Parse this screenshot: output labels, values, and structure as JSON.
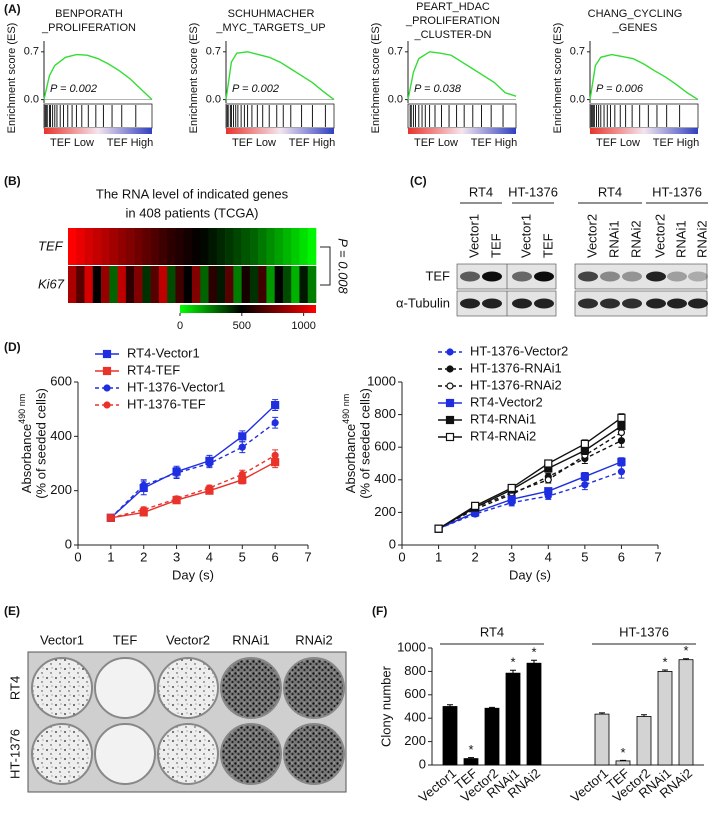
{
  "panel_labels": [
    "(A)",
    "(B)",
    "(C)",
    "(D)",
    "(E)",
    "(F)"
  ],
  "chart_data": [
    {
      "type": "gsea",
      "title": [
        "BENPORATH",
        "_PROLIFERATION"
      ],
      "ylabel": "Enrichment score (ES)",
      "annotation": "P = 0.002",
      "x_labels": [
        "TEF Low",
        "TEF High"
      ],
      "color": "#33dd33",
      "xlim": [
        0,
        1
      ],
      "ylim": [
        -0.05,
        0.8
      ],
      "yticks": [
        0.7,
        {
          "value": 0,
          "label": "0.0"
        }
      ],
      "x": [
        0,
        0.05,
        0.1,
        0.2,
        0.3,
        0.4,
        0.5,
        0.6,
        0.7,
        0.8,
        0.9,
        1
      ],
      "values": [
        0,
        0.35,
        0.5,
        0.62,
        0.66,
        0.65,
        0.6,
        0.52,
        0.42,
        0.3,
        0.15,
        0
      ],
      "hits": [
        0.01,
        0.02,
        0.03,
        0.05,
        0.06,
        0.08,
        0.1,
        0.12,
        0.15,
        0.18,
        0.22,
        0.26,
        0.3,
        0.35,
        0.41,
        0.48,
        0.55,
        0.63,
        0.72,
        0.85
      ]
    },
    {
      "type": "gsea",
      "title": [
        "SCHUHMACHER",
        "_MYC_TARGETS_UP"
      ],
      "ylabel": "Enrichment score (ES)",
      "annotation": "P = 0.002",
      "x_labels": [
        "TEF Low",
        "TEF High"
      ],
      "color": "#33dd33",
      "xlim": [
        0,
        1
      ],
      "ylim": [
        -0.05,
        0.8
      ],
      "yticks": [
        0.7,
        {
          "value": 0,
          "label": "0.0"
        }
      ],
      "x": [
        0,
        0.05,
        0.1,
        0.2,
        0.3,
        0.4,
        0.5,
        0.6,
        0.7,
        0.8,
        0.9,
        1
      ],
      "values": [
        0,
        0.55,
        0.68,
        0.7,
        0.66,
        0.62,
        0.55,
        0.45,
        0.35,
        0.25,
        0.12,
        0
      ],
      "hits": [
        0.01,
        0.02,
        0.04,
        0.05,
        0.07,
        0.09,
        0.11,
        0.14,
        0.17,
        0.2,
        0.24,
        0.29,
        0.34,
        0.4,
        0.47,
        0.53,
        0.6,
        0.7,
        0.8,
        0.92
      ]
    },
    {
      "type": "gsea",
      "title": [
        "PEART_HDAC",
        "_PROLIFERATION",
        "_CLUSTER-DN"
      ],
      "ylabel": "Enrichment score (ES)",
      "annotation": "P = 0.038",
      "x_labels": [
        "TEF Low",
        "TEF High"
      ],
      "color": "#33dd33",
      "xlim": [
        0,
        1
      ],
      "ylim": [
        -0.05,
        0.8
      ],
      "yticks": [
        0.7,
        {
          "value": 0,
          "label": "0.0"
        }
      ],
      "x": [
        0,
        0.05,
        0.1,
        0.2,
        0.3,
        0.4,
        0.5,
        0.6,
        0.7,
        0.8,
        0.9,
        1
      ],
      "values": [
        0,
        0.4,
        0.6,
        0.7,
        0.68,
        0.65,
        0.55,
        0.45,
        0.35,
        0.25,
        0.1,
        0.05
      ],
      "hits": [
        0.02,
        0.03,
        0.05,
        0.07,
        0.1,
        0.13,
        0.16,
        0.2,
        0.25,
        0.31,
        0.38,
        0.45,
        0.52,
        0.6,
        0.68,
        0.77,
        0.88
      ]
    },
    {
      "type": "gsea",
      "title": [
        "CHANG_CYCLING",
        "_GENES"
      ],
      "ylabel": "Enrichment score (ES)",
      "annotation": "P = 0.006",
      "x_labels": [
        "TEF Low",
        "TEF High"
      ],
      "color": "#33dd33",
      "xlim": [
        0,
        1
      ],
      "ylim": [
        -0.05,
        0.8
      ],
      "yticks": [
        0.7,
        {
          "value": 0,
          "label": "0.0"
        }
      ],
      "x": [
        0,
        0.05,
        0.1,
        0.2,
        0.3,
        0.4,
        0.5,
        0.6,
        0.7,
        0.8,
        0.9,
        1
      ],
      "values": [
        0,
        0.5,
        0.62,
        0.66,
        0.63,
        0.6,
        0.52,
        0.42,
        0.33,
        0.22,
        0.1,
        0
      ],
      "hits": [
        0.01,
        0.02,
        0.03,
        0.04,
        0.06,
        0.08,
        0.1,
        0.13,
        0.16,
        0.19,
        0.23,
        0.28,
        0.33,
        0.39,
        0.46,
        0.54,
        0.62,
        0.71,
        0.83
      ]
    },
    {
      "type": "line",
      "xlabel": "Day (s)",
      "ylabel": "Absorbance",
      "ylabel_sup": "490 nm",
      "ylabel2": "(% of seeded cells)",
      "x": [
        1,
        2,
        3,
        4,
        5,
        6
      ],
      "xlim": [
        0,
        7
      ],
      "xticks": [
        0,
        1,
        2,
        3,
        4,
        5,
        6,
        7
      ],
      "ylim": [
        0,
        600
      ],
      "yticks": [
        0,
        200,
        400,
        600
      ],
      "series": [
        {
          "name": "RT4-Vector1",
          "color": "#1f2fe0",
          "marker": "square",
          "fill": "filled",
          "dash": false,
          "values": [
            100,
            210,
            270,
            310,
            400,
            515
          ],
          "errors": [
            5,
            25,
            20,
            20,
            20,
            20
          ]
        },
        {
          "name": "RT4-TEF",
          "color": "#e8332b",
          "marker": "square",
          "fill": "filled",
          "dash": false,
          "values": [
            100,
            120,
            165,
            200,
            240,
            305
          ],
          "errors": [
            5,
            10,
            10,
            10,
            15,
            20
          ]
        },
        {
          "name": "HT-1376-Vector1",
          "color": "#1f2fe0",
          "marker": "circle",
          "fill": "filled",
          "dash": true,
          "values": [
            100,
            220,
            265,
            300,
            360,
            450
          ],
          "errors": [
            5,
            20,
            20,
            15,
            20,
            20
          ]
        },
        {
          "name": "HT-1376-TEF",
          "color": "#e8332b",
          "marker": "circle",
          "fill": "filled",
          "dash": true,
          "values": [
            100,
            130,
            170,
            210,
            260,
            330
          ],
          "errors": [
            5,
            10,
            10,
            10,
            15,
            20
          ]
        }
      ]
    },
    {
      "type": "line",
      "xlabel": "Day (s)",
      "ylabel": "Absorbance",
      "ylabel_sup": "490 nm",
      "ylabel2": "(% of seeded cells)",
      "x": [
        1,
        2,
        3,
        4,
        5,
        6
      ],
      "xlim": [
        0,
        7
      ],
      "xticks": [
        0,
        1,
        2,
        3,
        4,
        5,
        6,
        7
      ],
      "ylim": [
        0,
        1000
      ],
      "yticks": [
        0,
        200,
        400,
        600,
        800,
        1000
      ],
      "series": [
        {
          "name": "HT-1376-Vector2",
          "color": "#1f2fe0",
          "marker": "circle",
          "fill": "filled",
          "dash": true,
          "values": [
            100,
            190,
            260,
            300,
            370,
            450
          ],
          "errors": [
            5,
            15,
            20,
            20,
            30,
            40
          ]
        },
        {
          "name": "HT-1376-RNAi1",
          "color": "#111111",
          "marker": "circle",
          "fill": "filled",
          "dash": true,
          "values": [
            100,
            220,
            310,
            420,
            530,
            640
          ],
          "errors": [
            5,
            15,
            20,
            20,
            30,
            40
          ]
        },
        {
          "name": "HT-1376-RNAi2",
          "color": "#111111",
          "marker": "circle",
          "fill": "open",
          "dash": true,
          "values": [
            100,
            230,
            320,
            400,
            550,
            690
          ],
          "errors": [
            5,
            15,
            20,
            20,
            30,
            40
          ]
        },
        {
          "name": "RT4-Vector2",
          "color": "#1f2fe0",
          "marker": "square",
          "fill": "filled",
          "dash": false,
          "values": [
            100,
            200,
            280,
            330,
            420,
            510
          ],
          "errors": [
            5,
            15,
            20,
            20,
            25,
            25
          ]
        },
        {
          "name": "RT4-RNAi1",
          "color": "#111111",
          "marker": "square",
          "fill": "filled",
          "dash": false,
          "values": [
            100,
            230,
            340,
            470,
            580,
            730
          ],
          "errors": [
            5,
            15,
            20,
            20,
            25,
            25
          ]
        },
        {
          "name": "RT4-RNAi2",
          "color": "#111111",
          "marker": "square",
          "fill": "open",
          "dash": false,
          "values": [
            100,
            240,
            350,
            500,
            620,
            780
          ],
          "errors": [
            5,
            15,
            20,
            20,
            25,
            25
          ]
        }
      ]
    },
    {
      "type": "bar",
      "ylabel": "Clony number",
      "categories": [
        "Vector1",
        "TEF",
        "Vector2",
        "RNAi1",
        "RNAi2"
      ],
      "ylim": [
        0,
        1000
      ],
      "yticks": [
        0,
        200,
        400,
        600,
        800,
        1000
      ],
      "series": [
        {
          "name": "RT4",
          "color": "#000000",
          "values": [
            500,
            55,
            485,
            785,
            870
          ],
          "errors": [
            15,
            8,
            8,
            25,
            25
          ],
          "significance": [
            null,
            "*",
            null,
            "*",
            "*"
          ]
        },
        {
          "name": "HT-1376",
          "color": "#d3d3d3",
          "values": [
            435,
            35,
            415,
            800,
            900
          ],
          "errors": [
            10,
            5,
            15,
            12,
            8
          ],
          "significance": [
            null,
            "*",
            null,
            "*",
            "*"
          ]
        }
      ]
    }
  ],
  "heatmap": {
    "title": [
      "The RNA level of indicated genes",
      "in 408 patients (TCGA)"
    ],
    "annotation": "P = 0.008",
    "rows": [
      {
        "name": "TEF",
        "values": [
          1100,
          1050,
          1000,
          960,
          920,
          880,
          840,
          800,
          760,
          720,
          680,
          640,
          600,
          570,
          540,
          510,
          480,
          450,
          420,
          390,
          360,
          330,
          300,
          260,
          220,
          180,
          140,
          100,
          60,
          20
        ]
      },
      {
        "name": "Ki67",
        "values": [
          900,
          700,
          1000,
          500,
          850,
          300,
          950,
          600,
          800,
          400,
          700,
          950,
          350,
          650,
          500,
          800,
          300,
          600,
          450,
          700,
          250,
          550,
          400,
          650,
          200,
          500,
          350,
          150,
          450,
          250
        ]
      }
    ],
    "colorbar": {
      "lim": [
        0,
        1100
      ],
      "ticks": [
        0,
        500,
        1000
      ]
    }
  },
  "blot": {
    "groups": [
      {
        "name": "RT4",
        "lanes": [
          "Vector1",
          "TEF"
        ]
      },
      {
        "name": "HT-1376",
        "lanes": [
          "Vector1",
          "TEF"
        ]
      },
      {
        "name": "RT4",
        "lanes": [
          "Vector2",
          "RNAi1",
          "RNAi2"
        ]
      },
      {
        "name": "HT-1376",
        "lanes": [
          "Vector2",
          "RNAi1",
          "RNAi2"
        ]
      }
    ],
    "rows": [
      {
        "name": "TEF",
        "intensity": [
          0.6,
          0.95,
          0.55,
          0.95,
          0.7,
          0.4,
          0.35,
          0.85,
          0.3,
          0.25
        ]
      },
      {
        "name": "α-Tubulin",
        "intensity": [
          0.85,
          0.85,
          0.85,
          0.85,
          0.8,
          0.8,
          0.8,
          0.85,
          0.85,
          0.85
        ]
      }
    ]
  },
  "colony": {
    "columns": [
      "Vector1",
      "TEF",
      "Vector2",
      "RNAi1",
      "RNAi2"
    ],
    "rows": [
      "RT4",
      "HT-1376"
    ]
  }
}
